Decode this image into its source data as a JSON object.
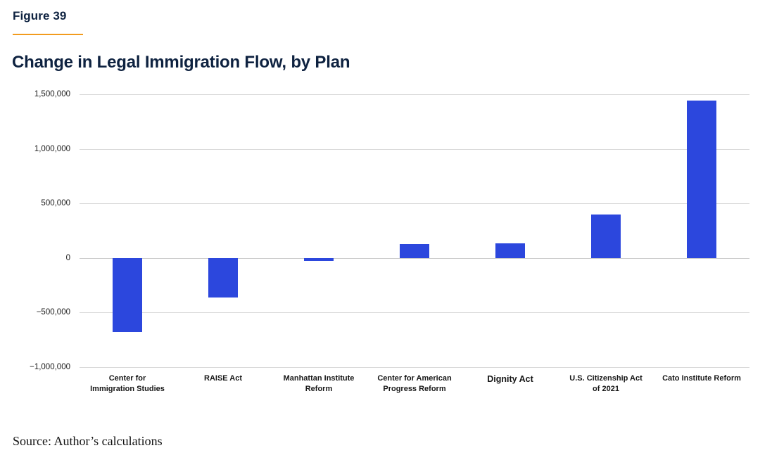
{
  "figure_label": "Figure 39",
  "title": "Change in Legal Immigration Flow, by Plan",
  "source": "Source: Author’s calculations",
  "colors": {
    "bar": "#2c47dd",
    "heading_navy": "#0e2240",
    "accent_orange": "#f29b1e",
    "gridline": "#d9d9d9",
    "zero_line": "#cccccc"
  },
  "chart_data": {
    "type": "bar",
    "title": "Change in Legal Immigration Flow, by Plan",
    "categories": [
      "Center for\nImmigration Studies",
      "RAISE Act",
      "Manhattan Institute\nReform",
      "Center for American\nProgress Reform",
      "Dignity Act",
      "U.S. Citizenship Act\nof 2021",
      "Cato Institute Reform"
    ],
    "values": [
      -675000,
      -360000,
      -25000,
      130000,
      135000,
      400000,
      1440000
    ],
    "emphasized_category_index": 4,
    "xlabel": "",
    "ylabel": "",
    "ylim": [
      -1000000,
      1500000
    ],
    "yticks": [
      {
        "value": 1500000,
        "label": "1,500,000"
      },
      {
        "value": 1000000,
        "label": "1,000,000"
      },
      {
        "value": 500000,
        "label": "500,000"
      },
      {
        "value": 0,
        "label": "0"
      },
      {
        "value": -500000,
        "label": "−500,000"
      },
      {
        "value": -1000000,
        "label": "−1,000,000"
      }
    ],
    "grid": "horizontal",
    "legend": "none",
    "bar_color": "#2c47dd"
  }
}
